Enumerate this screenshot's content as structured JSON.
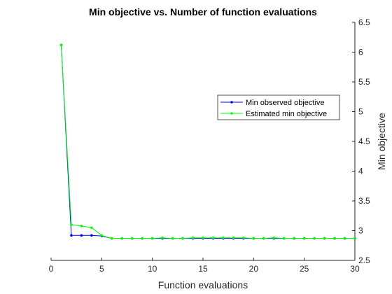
{
  "chart_data": {
    "type": "line",
    "title": "Min objective vs. Number of function evaluations",
    "xlabel": "Function evaluations",
    "ylabel": "Min objective",
    "xlim": [
      0,
      30
    ],
    "ylim": [
      2.5,
      6.5
    ],
    "xticks": [
      "0",
      "5",
      "10",
      "15",
      "20",
      "25",
      "30"
    ],
    "yticks": [
      "2.5",
      "3",
      "3.5",
      "4",
      "4.5",
      "5",
      "5.5",
      "6",
      "6.5"
    ],
    "y_axis_side": "right",
    "grid": false,
    "legend_position": "upper-right",
    "series": [
      {
        "name": "Min observed objective",
        "color": "#0000ff",
        "marker": "dot",
        "x": [
          1,
          2,
          3,
          4,
          5,
          6,
          7,
          8,
          9,
          10,
          11,
          12,
          13,
          14,
          15,
          16,
          17,
          18,
          19,
          20,
          21,
          22,
          23,
          24,
          25,
          26,
          27,
          28,
          29,
          30
        ],
        "values": [
          6.12,
          2.92,
          2.92,
          2.92,
          2.91,
          2.87,
          2.87,
          2.87,
          2.87,
          2.87,
          2.87,
          2.87,
          2.87,
          2.87,
          2.87,
          2.87,
          2.87,
          2.87,
          2.87,
          2.87,
          2.87,
          2.87,
          2.87,
          2.87,
          2.87,
          2.87,
          2.87,
          2.87,
          2.87,
          2.87
        ]
      },
      {
        "name": "Estimated min objective",
        "color": "#00ff00",
        "marker": "dot",
        "x": [
          1,
          2,
          3,
          4,
          5,
          6,
          7,
          8,
          9,
          10,
          11,
          12,
          13,
          14,
          15,
          16,
          17,
          18,
          19,
          20,
          21,
          22,
          23,
          24,
          25,
          26,
          27,
          28,
          29,
          30
        ],
        "values": [
          6.12,
          3.1,
          3.08,
          3.05,
          2.92,
          2.87,
          2.87,
          2.87,
          2.87,
          2.87,
          2.88,
          2.87,
          2.87,
          2.88,
          2.88,
          2.88,
          2.88,
          2.88,
          2.88,
          2.87,
          2.87,
          2.88,
          2.87,
          2.87,
          2.87,
          2.87,
          2.87,
          2.87,
          2.87,
          2.87
        ]
      }
    ]
  }
}
